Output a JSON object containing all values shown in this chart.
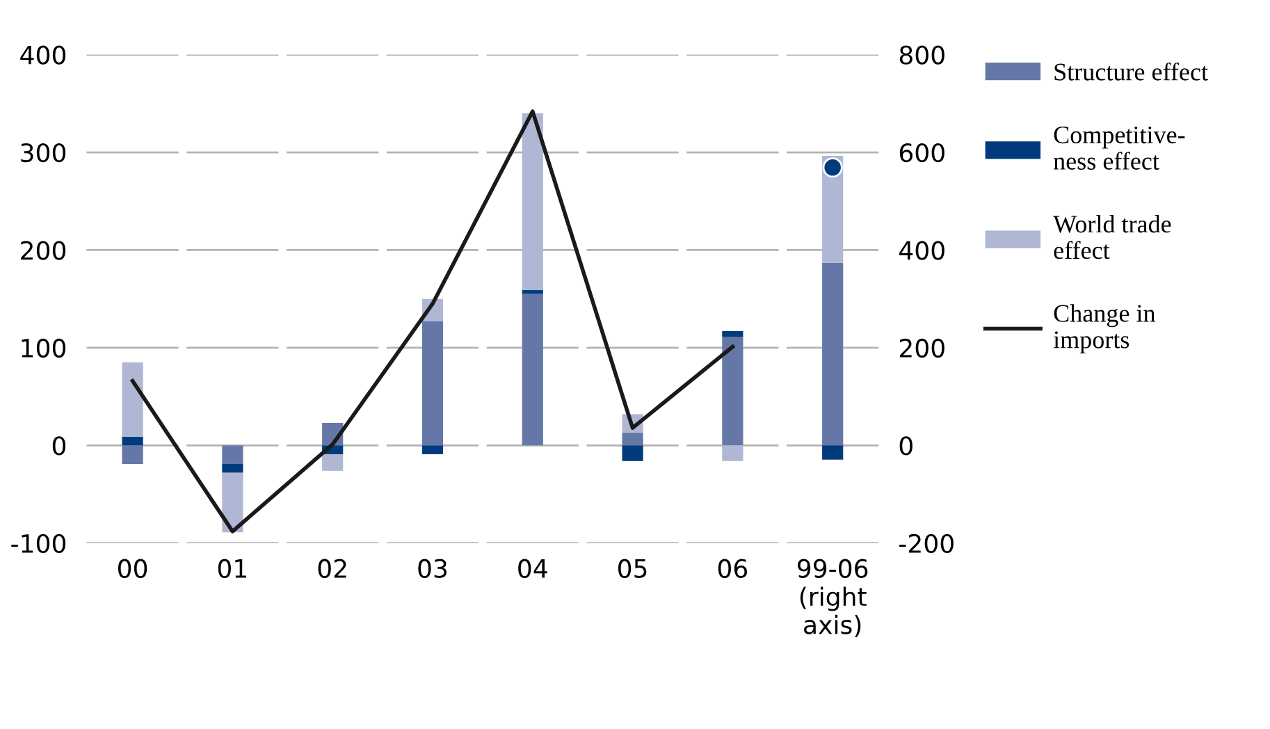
{
  "chart_data": {
    "type": "bar",
    "stacked": true,
    "categories": [
      "00",
      "01",
      "02",
      "03",
      "04",
      "05",
      "06",
      "99-06\n(right\naxis)"
    ],
    "series": [
      {
        "name": "Structure effect",
        "axis": "y",
        "color": "#6577a7",
        "values": [
          -19,
          -19,
          23,
          127,
          155,
          13,
          111,
          null
        ]
      },
      {
        "name": "Competitive-\nness effect",
        "axis": "y",
        "color": "#003c7d",
        "values": [
          9,
          -9,
          -9,
          -9,
          4,
          -16,
          6,
          null
        ]
      },
      {
        "name": "World trade\neffect",
        "axis": "y",
        "color": "#b0b7d4",
        "values": [
          76,
          -61,
          -17,
          23,
          181,
          19,
          -16,
          null
        ]
      },
      {
        "axis": "y2",
        "color": "#6577a7",
        "values": [
          null,
          null,
          null,
          null,
          null,
          null,
          null,
          374
        ]
      },
      {
        "axis": "y2",
        "color": "#003c7d",
        "values": [
          null,
          null,
          null,
          null,
          null,
          null,
          null,
          -29
        ]
      },
      {
        "axis": "y2",
        "color": "#b0b7d4",
        "values": [
          null,
          null,
          null,
          null,
          null,
          null,
          null,
          219
        ]
      },
      {
        "name": "Change in\nimports",
        "type": "line",
        "axis": "y",
        "color": "#1a1a1a",
        "values": [
          66,
          -88,
          1,
          145,
          342,
          18,
          101,
          null
        ]
      },
      {
        "type": "scatter",
        "axis": "y2",
        "color": "#003c7d",
        "marker": "circle",
        "values": [
          null,
          null,
          null,
          null,
          null,
          null,
          null,
          569
        ]
      }
    ],
    "ylim": [
      -100,
      400
    ],
    "yticks": [
      -100,
      0,
      100,
      200,
      300,
      400
    ],
    "y2lim": [
      -200,
      800
    ],
    "y2ticks": [
      -200,
      0,
      200,
      400,
      600,
      800
    ],
    "grid": "y",
    "legend": "right"
  }
}
